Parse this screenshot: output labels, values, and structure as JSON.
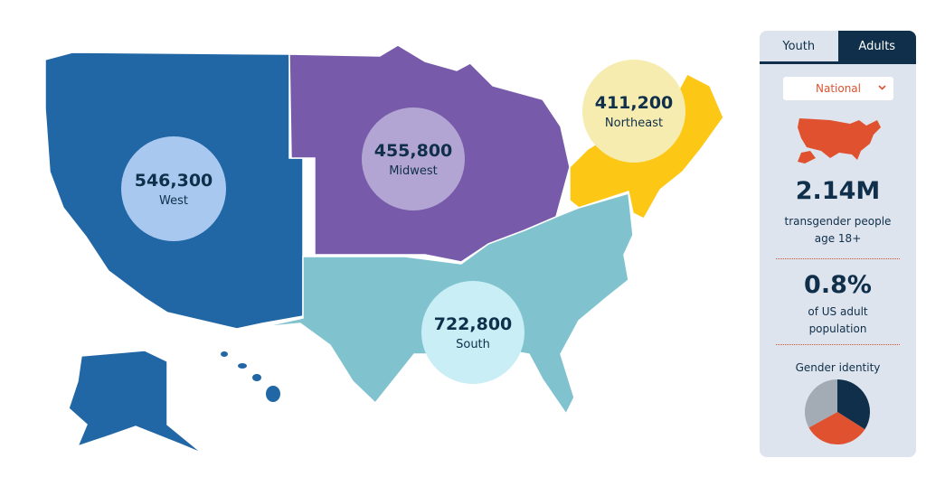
{
  "regions": [
    {
      "name": "West",
      "value": "546,300"
    },
    {
      "name": "Midwest",
      "value": "455,800"
    },
    {
      "name": "Northeast",
      "value": "411,200"
    },
    {
      "name": "South",
      "value": "722,800"
    }
  ],
  "panel": {
    "tabs": [
      "Youth",
      "Adults"
    ],
    "active_tab": 1,
    "dropdown": "National",
    "stats": [
      {
        "value": "2.14M",
        "label": "transgender people age 18+"
      },
      {
        "value": "0.8%",
        "label": "of US adult population"
      }
    ],
    "gender_identity": {
      "title": "Gender identity",
      "type": "pie",
      "values": [
        34,
        33,
        33
      ],
      "colors": [
        "#0f2f4a",
        "#e0522f",
        "#a3abb5"
      ]
    }
  }
}
